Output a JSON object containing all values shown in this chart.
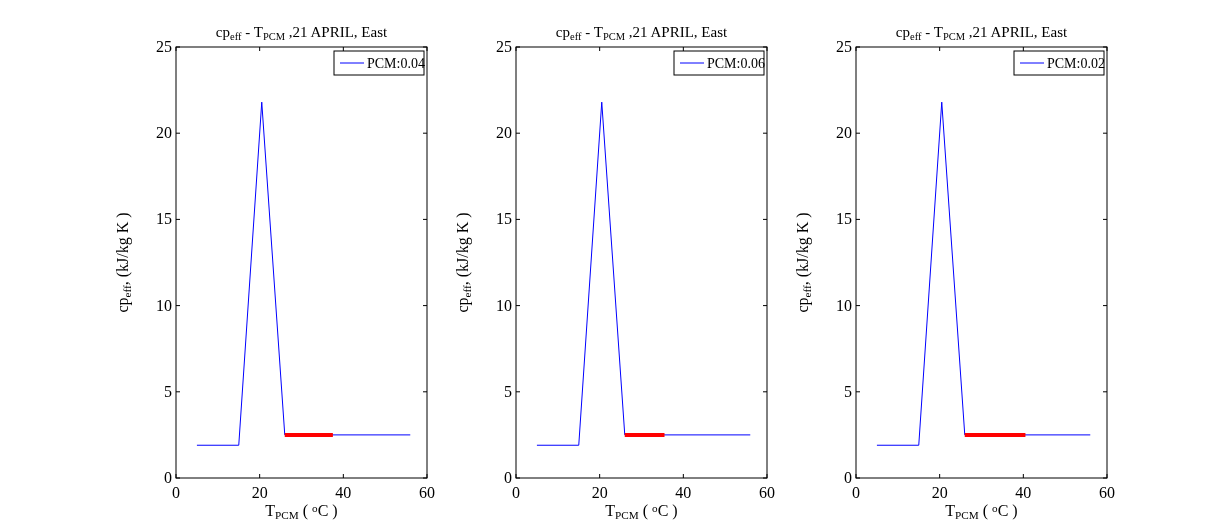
{
  "chart_data": [
    {
      "type": "line",
      "title": "cp$_{eff}$ - T$_{PCM}$ ,21 APRIL, East",
      "xlabel": "T$_{PCM}$ ( $^{o}$C )",
      "ylabel": "cp$_{eff}$, (kJ/kg K )",
      "xlim": [
        0,
        60
      ],
      "ylim": [
        0,
        25
      ],
      "xticks": [
        0,
        20,
        40,
        60
      ],
      "yticks": [
        0,
        5,
        10,
        15,
        20,
        25
      ],
      "legend": "top right",
      "grid": false,
      "series": [
        {
          "name": "PCM:0.04",
          "color": "#0000ff",
          "x": [
            5,
            15,
            20.5,
            26,
            56
          ],
          "values": [
            1.9,
            1.9,
            21.8,
            2.5,
            2.5
          ]
        },
        {
          "type": "line",
          "color": "#ff0000",
          "x": [
            26,
            37.5
          ],
          "values": [
            2.5,
            2.5
          ]
        }
      ]
    },
    {
      "type": "line",
      "title": "cp$_{eff}$ - T$_{PCM}$ ,21 APRIL, East",
      "xlabel": "T$_{PCM}$ ( $^{o}$C )",
      "ylabel": "cp$_{eff}$, (kJ/kg K )",
      "xlim": [
        0,
        60
      ],
      "ylim": [
        0,
        25
      ],
      "xticks": [
        0,
        20,
        40,
        60
      ],
      "yticks": [
        0,
        5,
        10,
        15,
        20,
        25
      ],
      "legend": "top right",
      "grid": false,
      "series": [
        {
          "name": "PCM:0.06",
          "color": "#0000ff",
          "x": [
            5,
            15,
            20.5,
            26,
            56
          ],
          "values": [
            1.9,
            1.9,
            21.8,
            2.5,
            2.5
          ]
        },
        {
          "type": "line",
          "color": "#ff0000",
          "x": [
            26,
            35.5
          ],
          "values": [
            2.5,
            2.5
          ]
        }
      ]
    },
    {
      "type": "line",
      "title": "cp$_{eff}$ - T$_{PCM}$ ,21 APRIL, East",
      "xlabel": "T$_{PCM}$ ( $^{o}$C )",
      "ylabel": "cp$_{eff}$, (kJ/kg K )",
      "xlim": [
        0,
        60
      ],
      "ylim": [
        0,
        25
      ],
      "xticks": [
        0,
        20,
        40,
        60
      ],
      "yticks": [
        0,
        5,
        10,
        15,
        20,
        25
      ],
      "legend": "top right",
      "grid": false,
      "series": [
        {
          "name": "PCM:0.02",
          "color": "#0000ff",
          "x": [
            5,
            15,
            20.5,
            26,
            56
          ],
          "values": [
            1.9,
            1.9,
            21.8,
            2.5,
            2.5
          ]
        },
        {
          "type": "line",
          "color": "#ff0000",
          "x": [
            26,
            40.5
          ],
          "values": [
            2.5,
            2.5
          ]
        }
      ]
    }
  ]
}
